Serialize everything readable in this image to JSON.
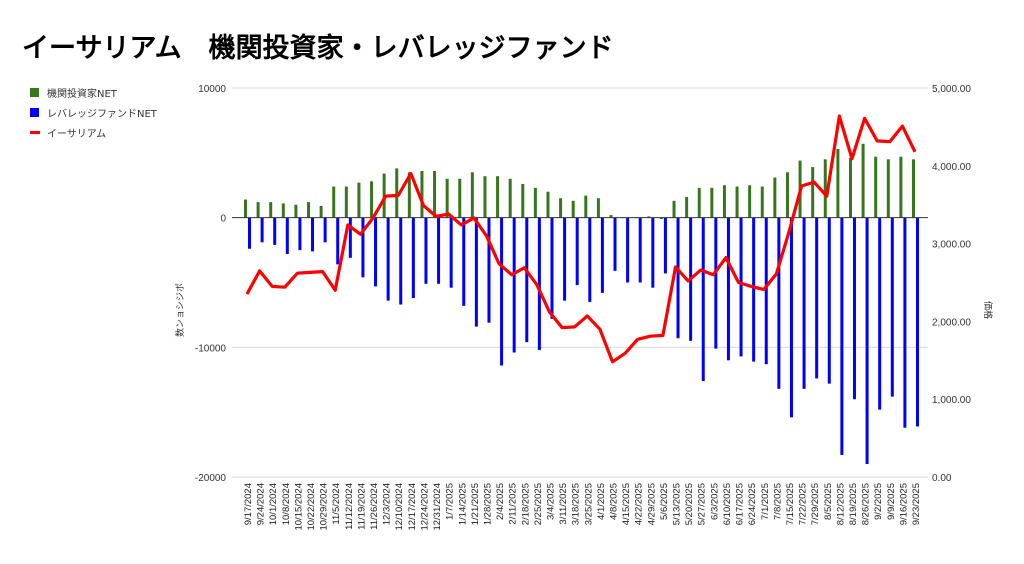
{
  "chart_data": {
    "type": "bar+line",
    "title": "イーサリアム　機関投資家・レバレッジファンド",
    "ylabel_left": "数ンョシジポ",
    "ylabel_right": "価格",
    "ylim_left": [
      -20000,
      10000
    ],
    "ylim_right": [
      0,
      5000
    ],
    "yticks_left": [
      "10000",
      "0",
      "-10000",
      "-20000"
    ],
    "yticks_right": [
      "5,000.00",
      "4,000.00",
      "3,000.00",
      "2,000.00",
      "1,000.00",
      "0.00"
    ],
    "grid": true,
    "legend_position": "top-left",
    "colors": {
      "institutional": "#38761d",
      "leveraged": "#0000ff",
      "eth": "#ff0000"
    },
    "categories": [
      "9/17/2024",
      "9/24/2024",
      "10/1/2024",
      "10/8/2024",
      "10/15/2024",
      "10/22/2024",
      "10/29/2024",
      "11/5/2024",
      "11/12/2024",
      "11/19/2024",
      "11/26/2024",
      "12/3/2024",
      "12/10/2024",
      "12/17/2024",
      "12/24/2024",
      "12/31/2024",
      "1/7/2025",
      "1/14/2025",
      "1/21/2025",
      "1/28/2025",
      "2/4/2025",
      "2/11/2025",
      "2/18/2025",
      "2/25/2025",
      "3/4/2025",
      "3/11/2025",
      "3/18/2025",
      "3/25/2025",
      "4/1/2025",
      "4/8/2025",
      "4/15/2025",
      "4/22/2025",
      "4/29/2025",
      "5/6/2025",
      "5/13/2025",
      "5/20/2025",
      "5/27/2025",
      "6/3/2025",
      "6/10/2025",
      "6/17/2025",
      "6/24/2025",
      "7/1/2025",
      "7/8/2025",
      "7/15/2025",
      "7/22/2025",
      "7/29/2025",
      "8/5/2025",
      "8/12/2025",
      "8/19/2025",
      "8/26/2025",
      "9/2/2025",
      "9/9/2025",
      "9/16/2025",
      "9/23/2025"
    ],
    "series": [
      {
        "name": "機関投資家NET",
        "type": "bar",
        "axis": "left",
        "values": [
          1400,
          1200,
          1200,
          1100,
          1000,
          1200,
          900,
          2400,
          2400,
          2700,
          2800,
          3400,
          3800,
          3500,
          3600,
          3600,
          3000,
          3000,
          3500,
          3200,
          3200,
          3000,
          2600,
          2300,
          2000,
          1500,
          1300,
          1700,
          1500,
          200,
          0,
          0,
          100,
          -100,
          1300,
          1600,
          2300,
          2300,
          2500,
          2400,
          2500,
          2400,
          3100,
          3500,
          4400,
          3900,
          4500,
          5300,
          4600,
          5700,
          4700,
          4500,
          4700,
          4500
        ]
      },
      {
        "name": "レバレッジファンドNET",
        "type": "bar",
        "axis": "left",
        "values": [
          -2400,
          -1900,
          -2100,
          -2800,
          -2500,
          -2600,
          -1900,
          -3600,
          -3100,
          -4600,
          -5300,
          -6400,
          -6700,
          -6200,
          -5100,
          -5100,
          -5400,
          -6800,
          -8400,
          -8100,
          -11400,
          -10400,
          -9600,
          -10200,
          -7800,
          -6400,
          -5200,
          -6500,
          -5800,
          -4100,
          -5000,
          -5000,
          -5400,
          -4300,
          -9300,
          -9500,
          -12600,
          -10100,
          -11000,
          -10700,
          -11100,
          -11300,
          -13200,
          -15400,
          -13200,
          -12400,
          -12800,
          -18300,
          -14000,
          -19000,
          -14800,
          -13800,
          -16200,
          -16100
        ]
      },
      {
        "name": "イーサリアム",
        "type": "line",
        "axis": "right",
        "values": [
          2350,
          2650,
          2450,
          2440,
          2620,
          2630,
          2640,
          2400,
          3240,
          3120,
          3330,
          3610,
          3620,
          3900,
          3490,
          3350,
          3380,
          3240,
          3330,
          3100,
          2740,
          2600,
          2690,
          2470,
          2120,
          1920,
          1930,
          2070,
          1900,
          1480,
          1590,
          1770,
          1810,
          1820,
          2700,
          2520,
          2660,
          2600,
          2820,
          2500,
          2450,
          2410,
          2610,
          3150,
          3740,
          3790,
          3610,
          4640,
          4090,
          4610,
          4320,
          4310,
          4510,
          4180
        ]
      }
    ]
  }
}
